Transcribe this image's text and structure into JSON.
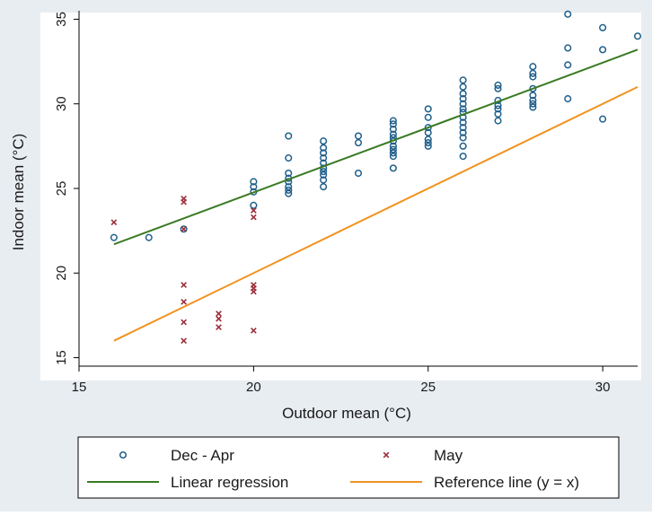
{
  "chart_data": {
    "type": "scatter",
    "xlabel": "Outdoor mean (°C)",
    "ylabel": "Indoor mean (°C)",
    "xlim": [
      15,
      31
    ],
    "ylim": [
      14.5,
      35.5
    ],
    "x_ticks": [
      15,
      20,
      25,
      30
    ],
    "y_ticks": [
      15,
      20,
      25,
      30,
      35
    ],
    "grid": false,
    "legend_position": "bottom",
    "series": [
      {
        "name": "Dec - Apr",
        "kind": "scatter",
        "marker": "circle",
        "color": "#1f5f8b",
        "points": [
          [
            16,
            22.1
          ],
          [
            17,
            22.1
          ],
          [
            18,
            22.6
          ],
          [
            20,
            25.4
          ],
          [
            20,
            25.1
          ],
          [
            20,
            24.8
          ],
          [
            20,
            24.0
          ],
          [
            21,
            28.1
          ],
          [
            21,
            26.8
          ],
          [
            21,
            25.9
          ],
          [
            21,
            25.6
          ],
          [
            21,
            25.4
          ],
          [
            21,
            25.1
          ],
          [
            21,
            24.9
          ],
          [
            21,
            24.7
          ],
          [
            22,
            27.8
          ],
          [
            22,
            27.4
          ],
          [
            22,
            27.1
          ],
          [
            22,
            26.8
          ],
          [
            22,
            26.5
          ],
          [
            22,
            26.2
          ],
          [
            22,
            26.0
          ],
          [
            22,
            25.8
          ],
          [
            22,
            25.5
          ],
          [
            22,
            25.1
          ],
          [
            23,
            28.1
          ],
          [
            23,
            27.7
          ],
          [
            23,
            25.9
          ],
          [
            24,
            29.0
          ],
          [
            24,
            28.8
          ],
          [
            24,
            28.5
          ],
          [
            24,
            28.2
          ],
          [
            24,
            28.0
          ],
          [
            24,
            27.8
          ],
          [
            24,
            27.5
          ],
          [
            24,
            27.3
          ],
          [
            24,
            27.1
          ],
          [
            24,
            26.9
          ],
          [
            24,
            26.2
          ],
          [
            25,
            29.7
          ],
          [
            25,
            29.2
          ],
          [
            25,
            28.6
          ],
          [
            25,
            28.3
          ],
          [
            25,
            27.9
          ],
          [
            25,
            27.7
          ],
          [
            25,
            27.5
          ],
          [
            26,
            31.4
          ],
          [
            26,
            31.0
          ],
          [
            26,
            30.6
          ],
          [
            26,
            30.3
          ],
          [
            26,
            30.0
          ],
          [
            26,
            29.7
          ],
          [
            26,
            29.5
          ],
          [
            26,
            29.2
          ],
          [
            26,
            28.9
          ],
          [
            26,
            28.6
          ],
          [
            26,
            28.3
          ],
          [
            26,
            28.0
          ],
          [
            26,
            27.5
          ],
          [
            26,
            26.9
          ],
          [
            27,
            31.1
          ],
          [
            27,
            30.9
          ],
          [
            27,
            30.2
          ],
          [
            27,
            29.9
          ],
          [
            27,
            29.7
          ],
          [
            27,
            29.4
          ],
          [
            27,
            29.0
          ],
          [
            28,
            32.2
          ],
          [
            28,
            31.8
          ],
          [
            28,
            31.6
          ],
          [
            28,
            30.9
          ],
          [
            28,
            30.5
          ],
          [
            28,
            30.2
          ],
          [
            28,
            30.0
          ],
          [
            28,
            29.8
          ],
          [
            29,
            35.3
          ],
          [
            29,
            33.3
          ],
          [
            29,
            32.3
          ],
          [
            29,
            30.3
          ],
          [
            30,
            34.5
          ],
          [
            30,
            33.2
          ],
          [
            30,
            29.1
          ],
          [
            31,
            34.0
          ]
        ]
      },
      {
        "name": "May",
        "kind": "scatter",
        "marker": "x",
        "color": "#9b2e3a",
        "points": [
          [
            16,
            23.0
          ],
          [
            18,
            24.4
          ],
          [
            18,
            24.2
          ],
          [
            18,
            22.6
          ],
          [
            18,
            19.3
          ],
          [
            18,
            18.3
          ],
          [
            18,
            17.1
          ],
          [
            18,
            16.0
          ],
          [
            19,
            17.6
          ],
          [
            19,
            17.3
          ],
          [
            19,
            16.8
          ],
          [
            20,
            23.7
          ],
          [
            20,
            23.3
          ],
          [
            20,
            19.3
          ],
          [
            20,
            19.1
          ],
          [
            20,
            18.9
          ],
          [
            20,
            16.6
          ]
        ]
      },
      {
        "name": "Linear regression",
        "kind": "line",
        "color": "#3a7a23",
        "points": [
          [
            16,
            21.7
          ],
          [
            31,
            33.2
          ]
        ]
      },
      {
        "name": "Reference line (y = x)",
        "kind": "line",
        "color": "#f2921f",
        "points": [
          [
            16,
            16
          ],
          [
            31,
            31
          ]
        ]
      }
    ]
  }
}
